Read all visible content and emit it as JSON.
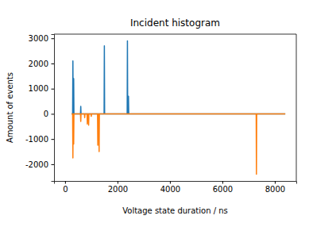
{
  "chart_data": {
    "type": "line",
    "title": "Incident histogram",
    "x_label": "Voltage state duration / ns",
    "y_label": "Amount of events",
    "x": [
      250,
      290,
      300,
      310,
      320,
      330,
      340,
      590,
      600,
      610,
      740,
      750,
      760,
      840,
      850,
      860,
      890,
      900,
      910,
      990,
      1000,
      1010,
      1240,
      1250,
      1260,
      1290,
      1300,
      1310,
      1480,
      1490,
      1500,
      1510,
      2370,
      2380,
      2390,
      2410,
      2420,
      2430,
      7290,
      7300,
      7310,
      8400
    ],
    "series": [
      {
        "color": "#1f77b4",
        "values": [
          0,
          0,
          2100,
          0,
          0,
          1400,
          0,
          0,
          300,
          0,
          0,
          0,
          0,
          0,
          0,
          0,
          0,
          0,
          0,
          0,
          0,
          0,
          0,
          0,
          0,
          0,
          0,
          0,
          0,
          0,
          2700,
          0,
          0,
          2900,
          0,
          0,
          700,
          0,
          0,
          0,
          0,
          0
        ]
      },
      {
        "color": "#ff7f0e",
        "values": [
          0,
          0,
          -1750,
          0,
          0,
          -1200,
          0,
          0,
          -300,
          0,
          0,
          -150,
          0,
          0,
          -400,
          0,
          0,
          -450,
          0,
          0,
          -100,
          0,
          0,
          -1250,
          0,
          0,
          -1500,
          0,
          0,
          0,
          0,
          0,
          0,
          0,
          0,
          0,
          0,
          0,
          0,
          -2400,
          0,
          0
        ]
      }
    ],
    "xlim": [
      -420,
      8820
    ],
    "ylim": [
      -2665,
      3165
    ],
    "xticks": [
      0,
      2000,
      4000,
      6000,
      8000
    ],
    "yticks": [
      -2000,
      -1000,
      0,
      1000,
      2000,
      3000
    ],
    "grid": false
  }
}
